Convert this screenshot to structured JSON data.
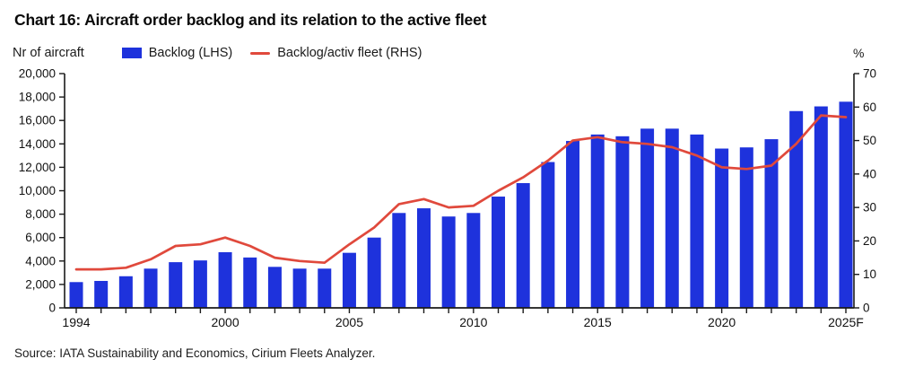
{
  "title": "Chart 16: Aircraft order backlog and its relation to the active fleet",
  "axis_units": {
    "left": "Nr of aircraft",
    "right": "%"
  },
  "legend": {
    "items": [
      {
        "label": "Backlog (LHS)",
        "marker": "square",
        "color": "#1e32dc"
      },
      {
        "label": "Backlog/activ fleet (RHS)",
        "marker": "line",
        "color": "#e0493c"
      }
    ]
  },
  "source": "Source: IATA Sustainability and Economics, Cirium Fleets Analyzer.",
  "chart_data": {
    "type": "bar",
    "title": "Chart 16: Aircraft order backlog and its relation to the active fleet",
    "categories": [
      "1994",
      "1995",
      "1996",
      "1997",
      "1998",
      "1999",
      "2000",
      "2001",
      "2002",
      "2003",
      "2004",
      "2005",
      "2006",
      "2007",
      "2008",
      "2009",
      "2010",
      "2011",
      "2012",
      "2013",
      "2014",
      "2015",
      "2016",
      "2017",
      "2018",
      "2019",
      "2020",
      "2021",
      "2022",
      "2023",
      "2024",
      "2025F"
    ],
    "x_tick_labels": [
      "1994",
      "2000",
      "2005",
      "2010",
      "2015",
      "2020",
      "2025F"
    ],
    "series": [
      {
        "name": "Backlog (LHS)",
        "type": "bar",
        "axis": "left",
        "color": "#1e32dc",
        "values": [
          2200,
          2300,
          2700,
          3350,
          3900,
          4050,
          4750,
          4300,
          3500,
          3350,
          3350,
          4700,
          6000,
          8100,
          8500,
          7800,
          8100,
          9500,
          10650,
          12450,
          14250,
          14800,
          14650,
          15300,
          15300,
          14800,
          13600,
          13700,
          14400,
          16800,
          17200,
          17600
        ]
      },
      {
        "name": "Backlog/activ fleet (RHS)",
        "type": "line",
        "axis": "right",
        "color": "#e0493c",
        "values": [
          11.5,
          11.5,
          12,
          14.5,
          18.5,
          19,
          21,
          18.5,
          15,
          14,
          13.5,
          19,
          24,
          31,
          32.5,
          30,
          30.5,
          35,
          39,
          44,
          50,
          51,
          49.5,
          49,
          48,
          45.5,
          42,
          41.5,
          42.5,
          49,
          57.5,
          57
        ]
      }
    ],
    "left_axis": {
      "label": "Nr of aircraft",
      "min": 0,
      "max": 20000,
      "tick_step": 2000
    },
    "right_axis": {
      "label": "%",
      "min": 0,
      "max": 70,
      "tick_step": 10
    },
    "grid": false,
    "legend_position": "top"
  }
}
